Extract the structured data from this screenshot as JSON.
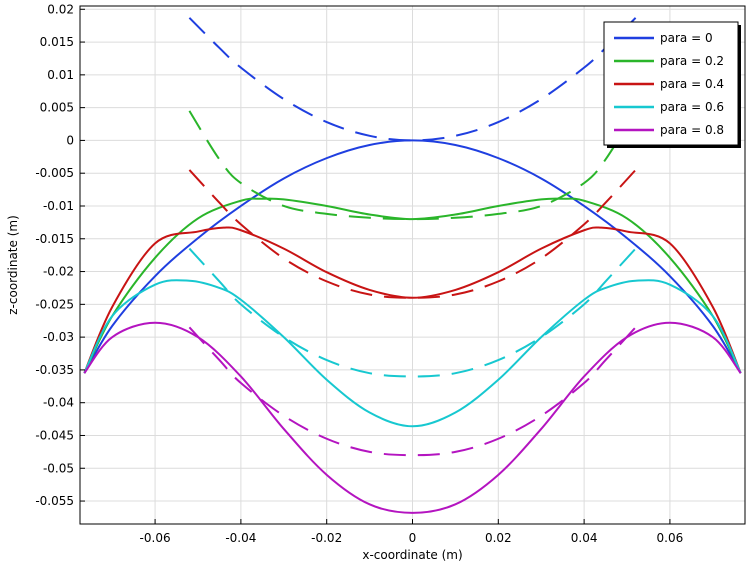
{
  "chart_data": {
    "type": "line",
    "title": "",
    "xlabel": "x-coordinate (m)",
    "ylabel": "z-coordinate (m)",
    "xlim": [
      -0.0775,
      0.0775
    ],
    "ylim": [
      -0.0585,
      0.0205
    ],
    "grid": true,
    "legend_position": "top-right",
    "x_ticks": [
      -0.06,
      -0.04,
      -0.02,
      0,
      0.02,
      0.04,
      0.06
    ],
    "x_tick_labels": [
      "-0.06",
      "-0.04",
      "-0.02",
      "0",
      "0.02",
      "0.04",
      "0.06"
    ],
    "y_ticks": [
      0.02,
      0.015,
      0.01,
      0.005,
      0,
      -0.005,
      -0.01,
      -0.015,
      -0.02,
      -0.025,
      -0.03,
      -0.035,
      -0.04,
      -0.045,
      -0.05,
      -0.055
    ],
    "y_tick_labels": [
      "0.02",
      "0.015",
      "0.01",
      "0.005",
      "0",
      "-0.005",
      "-0.01",
      "-0.015",
      "-0.02",
      "-0.025",
      "-0.03",
      "-0.035",
      "-0.04",
      "-0.045",
      "-0.05",
      "-0.055"
    ],
    "series": [
      {
        "name": "para = 0",
        "color": "#1f3fe0",
        "solid": {
          "x": [
            -0.0765,
            -0.07,
            -0.06,
            -0.05,
            -0.04,
            -0.03,
            -0.02,
            -0.01,
            0,
            0.01,
            0.02,
            0.03,
            0.04,
            0.05,
            0.06,
            0.07,
            0.0765
          ],
          "y": [
            -0.0355,
            -0.0283,
            -0.0207,
            -0.0149,
            -0.01,
            -0.0058,
            -0.0027,
            -0.0007,
            0,
            -0.0007,
            -0.0027,
            -0.0058,
            -0.01,
            -0.0149,
            -0.0207,
            -0.0283,
            -0.0355
          ]
        },
        "dashed": {
          "x": [
            -0.052,
            -0.045,
            -0.04,
            -0.03,
            -0.02,
            -0.01,
            0,
            0.01,
            0.02,
            0.03,
            0.04,
            0.045,
            0.052
          ],
          "y": [
            0.0187,
            0.0141,
            0.0111,
            0.0063,
            0.0028,
            0.0007,
            0,
            0.0007,
            0.0028,
            0.0063,
            0.0111,
            0.0141,
            0.0187
          ]
        }
      },
      {
        "name": "para = 0.2",
        "color": "#2ab52a",
        "solid": {
          "x": [
            -0.0765,
            -0.07,
            -0.06,
            -0.05,
            -0.04,
            -0.035,
            -0.03,
            -0.02,
            -0.01,
            0,
            0.01,
            0.02,
            0.03,
            0.035,
            0.04,
            0.05,
            0.06,
            0.07,
            0.0765
          ],
          "y": [
            -0.0355,
            -0.0268,
            -0.0179,
            -0.0119,
            -0.0092,
            -0.0089,
            -0.009,
            -0.01,
            -0.0113,
            -0.012,
            -0.0113,
            -0.01,
            -0.009,
            -0.0089,
            -0.0092,
            -0.0119,
            -0.0179,
            -0.0268,
            -0.0355
          ]
        },
        "dashed": {
          "x": [
            -0.052,
            -0.045,
            -0.04,
            -0.03,
            -0.02,
            -0.01,
            0,
            0.01,
            0.02,
            0.03,
            0.04,
            0.045,
            0.052
          ],
          "y": [
            0.0045,
            -0.0029,
            -0.0065,
            -0.01,
            -0.0112,
            -0.0118,
            -0.012,
            -0.0118,
            -0.0112,
            -0.01,
            -0.0065,
            -0.0029,
            0.0045
          ]
        }
      },
      {
        "name": "para = 0.4",
        "color": "#c81414",
        "solid": {
          "x": [
            -0.0765,
            -0.07,
            -0.06,
            -0.05,
            -0.044,
            -0.04,
            -0.03,
            -0.02,
            -0.01,
            0,
            0.01,
            0.02,
            0.03,
            0.04,
            0.044,
            0.05,
            0.06,
            0.07,
            0.0765
          ],
          "y": [
            -0.0355,
            -0.0254,
            -0.0157,
            -0.0139,
            -0.0133,
            -0.0137,
            -0.0165,
            -0.0201,
            -0.0228,
            -0.024,
            -0.0228,
            -0.0201,
            -0.0165,
            -0.0137,
            -0.0133,
            -0.0139,
            -0.0157,
            -0.0254,
            -0.0355
          ]
        },
        "dashed": {
          "x": [
            -0.052,
            -0.045,
            -0.04,
            -0.03,
            -0.02,
            -0.01,
            0,
            0.01,
            0.02,
            0.03,
            0.04,
            0.045,
            0.052
          ],
          "y": [
            -0.0045,
            -0.0095,
            -0.0128,
            -0.018,
            -0.0215,
            -0.0235,
            -0.024,
            -0.0235,
            -0.0215,
            -0.018,
            -0.0128,
            -0.0095,
            -0.0045
          ]
        }
      },
      {
        "name": "para = 0.6",
        "color": "#17c8d0",
        "solid": {
          "x": [
            -0.0765,
            -0.07,
            -0.06,
            -0.052,
            -0.045,
            -0.04,
            -0.03,
            -0.02,
            -0.01,
            0,
            0.01,
            0.02,
            0.03,
            0.04,
            0.045,
            0.052,
            0.06,
            0.07,
            0.0765
          ],
          "y": [
            -0.0355,
            -0.0268,
            -0.022,
            -0.0214,
            -0.0225,
            -0.0243,
            -0.03,
            -0.0365,
            -0.0415,
            -0.0436,
            -0.0415,
            -0.0365,
            -0.03,
            -0.0243,
            -0.0225,
            -0.0214,
            -0.022,
            -0.0268,
            -0.0355
          ]
        },
        "dashed": {
          "x": [
            -0.052,
            -0.045,
            -0.04,
            -0.03,
            -0.02,
            -0.01,
            0,
            0.01,
            0.02,
            0.03,
            0.04,
            0.045,
            0.052
          ],
          "y": [
            -0.0165,
            -0.0215,
            -0.025,
            -0.03,
            -0.0335,
            -0.0355,
            -0.036,
            -0.0355,
            -0.0335,
            -0.03,
            -0.025,
            -0.0215,
            -0.0165
          ]
        }
      },
      {
        "name": "para = 0.8",
        "color": "#b414c0",
        "solid": {
          "x": [
            -0.0765,
            -0.07,
            -0.06,
            -0.05,
            -0.04,
            -0.03,
            -0.02,
            -0.01,
            0,
            0.01,
            0.02,
            0.03,
            0.04,
            0.05,
            0.06,
            0.07,
            0.0765
          ],
          "y": [
            -0.0355,
            -0.03,
            -0.0278,
            -0.03,
            -0.036,
            -0.044,
            -0.051,
            -0.0555,
            -0.0568,
            -0.0555,
            -0.051,
            -0.044,
            -0.036,
            -0.03,
            -0.0278,
            -0.03,
            -0.0355
          ]
        },
        "dashed": {
          "x": [
            -0.052,
            -0.045,
            -0.04,
            -0.03,
            -0.02,
            -0.01,
            0,
            0.01,
            0.02,
            0.03,
            0.04,
            0.045,
            0.052
          ],
          "y": [
            -0.0285,
            -0.0335,
            -0.037,
            -0.042,
            -0.0455,
            -0.0475,
            -0.048,
            -0.0475,
            -0.0455,
            -0.042,
            -0.037,
            -0.0335,
            -0.0285
          ]
        }
      }
    ]
  }
}
